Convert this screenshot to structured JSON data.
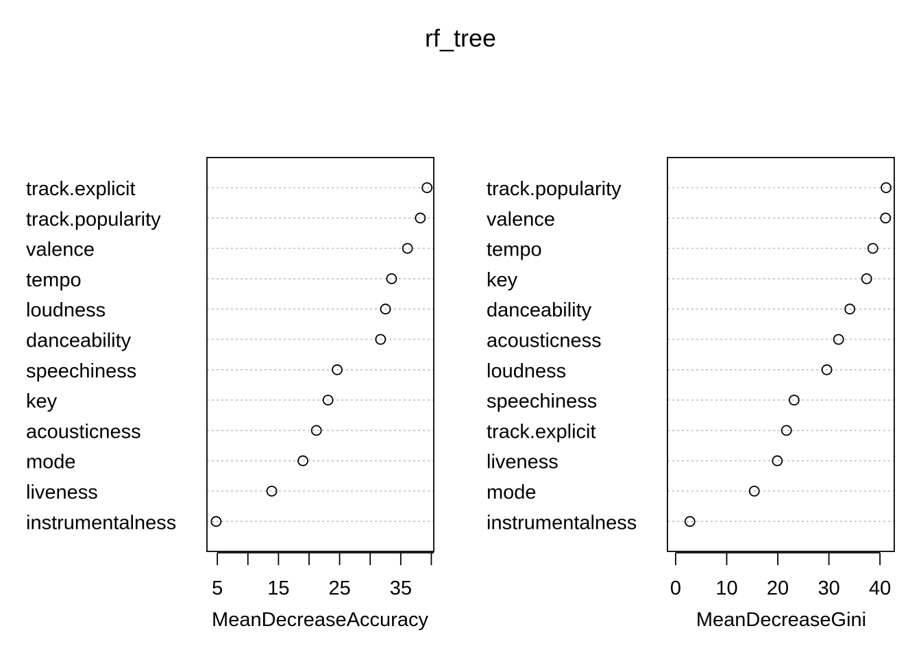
{
  "title": "rf_tree",
  "chart_data": [
    {
      "type": "scatter",
      "subtype": "dotchart",
      "xlabel": "MeanDecreaseAccuracy",
      "xticks": [
        5,
        15,
        25,
        35
      ],
      "xlim": [
        3.3,
        40.4
      ],
      "grid": "horizontal dotted",
      "categories": [
        "track.explicit",
        "track.popularity",
        "valence",
        "tempo",
        "loudness",
        "danceability",
        "speechiness",
        "key",
        "acousticness",
        "mode",
        "liveness",
        "instrumentalness"
      ],
      "values": [
        39.3,
        38.2,
        36.1,
        33.5,
        32.5,
        31.7,
        24.6,
        23.1,
        21.2,
        19.0,
        13.9,
        4.8
      ]
    },
    {
      "type": "scatter",
      "subtype": "dotchart",
      "xlabel": "MeanDecreaseGini",
      "xticks": [
        0,
        10,
        20,
        30,
        40
      ],
      "xlim": [
        -1.6,
        42.8
      ],
      "grid": "horizontal dotted",
      "categories": [
        "track.popularity",
        "valence",
        "tempo",
        "key",
        "danceability",
        "acousticness",
        "loudness",
        "speechiness",
        "track.explicit",
        "liveness",
        "mode",
        "instrumentalness"
      ],
      "values": [
        41.2,
        41.1,
        38.6,
        37.4,
        34.1,
        31.9,
        29.6,
        23.2,
        21.7,
        19.9,
        15.4,
        2.8
      ]
    }
  ]
}
